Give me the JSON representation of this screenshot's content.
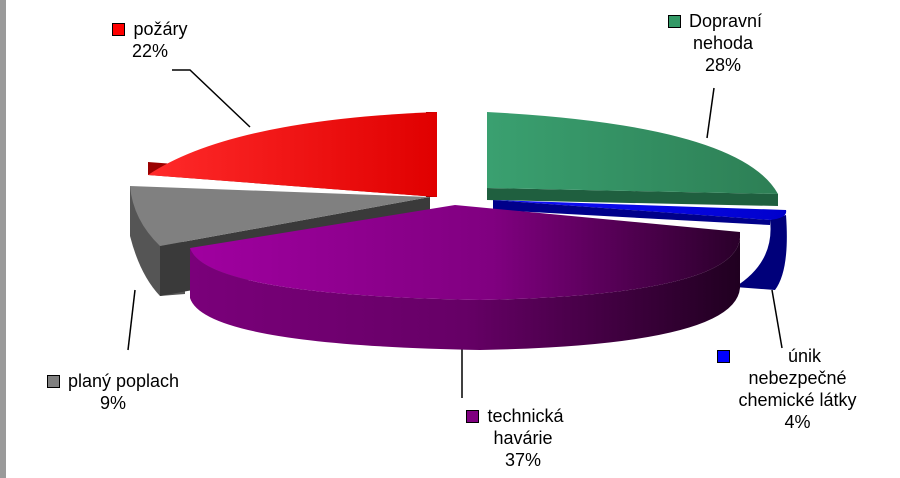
{
  "chart_data": {
    "type": "pie",
    "title": "",
    "style": "3d-exploded",
    "categories": [
      "požáry",
      "Dopravní nehoda",
      "únik nebezpečné chemické látky",
      "technická havárie",
      "planý poplach"
    ],
    "series": [
      {
        "values": [
          22,
          28,
          4,
          37,
          9
        ]
      }
    ],
    "percent_labels": [
      "22%",
      "28%",
      "4%",
      "37%",
      "9%"
    ],
    "colors": [
      "#ff0000",
      "#339966",
      "#0000ff",
      "#800080",
      "#808080"
    ],
    "legend": "labels-with-swatches-next-to-slices"
  },
  "labels": {
    "pozary": {
      "line1": "požáry",
      "pct": "22%"
    },
    "doprava": {
      "line1": "Dopravní",
      "line2": "nehoda",
      "pct": "28%"
    },
    "unik": {
      "line1": "únik",
      "line2": "nebezpečné",
      "line3": "chemické látky",
      "pct": "4%"
    },
    "technicka": {
      "line1": "technická",
      "line2": "havárie",
      "pct": "37%"
    },
    "plany": {
      "line1": "planý poplach",
      "pct": "9%"
    }
  }
}
